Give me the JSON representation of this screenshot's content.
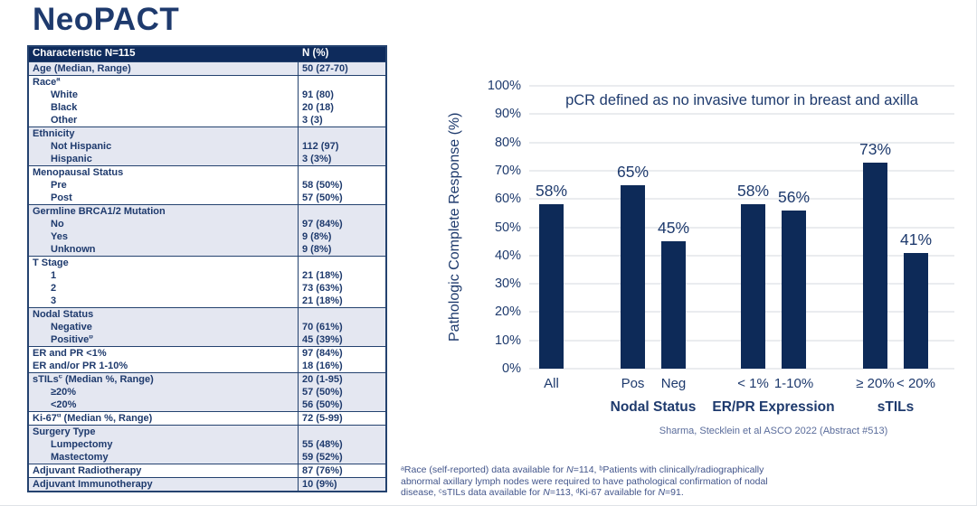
{
  "slide": {
    "title": "NeoPACT"
  },
  "table": {
    "header": [
      "Characteristic N=115",
      "N (%)"
    ],
    "sections": [
      {
        "shade": "light",
        "rows": [
          {
            "label": "Age (Median, Range)",
            "value": "50 (27-70)"
          }
        ]
      },
      {
        "shade": "white",
        "rows": [
          {
            "label": "Race",
            "sup": "a",
            "value": ""
          },
          {
            "label": "White",
            "indent": true,
            "value": "91 (80)"
          },
          {
            "label": "Black",
            "indent": true,
            "value": "20 (18)"
          },
          {
            "label": "Other",
            "indent": true,
            "value": "3 (3)"
          }
        ]
      },
      {
        "shade": "light",
        "rows": [
          {
            "label": "Ethnicity",
            "value": ""
          },
          {
            "label": "Not Hispanic",
            "indent": true,
            "value": "112 (97)"
          },
          {
            "label": "Hispanic",
            "indent": true,
            "value": "3 (3%)"
          }
        ]
      },
      {
        "shade": "white",
        "rows": [
          {
            "label": "Menopausal Status",
            "value": ""
          },
          {
            "label": "Pre",
            "indent": true,
            "value": "58 (50%)"
          },
          {
            "label": "Post",
            "indent": true,
            "value": "57 (50%)"
          }
        ]
      },
      {
        "shade": "light",
        "rows": [
          {
            "label": "Germline BRCA1/2 Mutation",
            "value": ""
          },
          {
            "label": "No",
            "indent": true,
            "value": "97 (84%)"
          },
          {
            "label": "Yes",
            "indent": true,
            "value": "9 (8%)"
          },
          {
            "label": "Unknown",
            "indent": true,
            "value": "9 (8%)"
          }
        ]
      },
      {
        "shade": "white",
        "rows": [
          {
            "label": "T Stage",
            "value": ""
          },
          {
            "label": "1",
            "indent": true,
            "value": "21 (18%)"
          },
          {
            "label": "2",
            "indent": true,
            "value": "73 (63%)"
          },
          {
            "label": "3",
            "indent": true,
            "value": "21 (18%)"
          }
        ]
      },
      {
        "shade": "light",
        "rows": [
          {
            "label": "Nodal Status",
            "value": ""
          },
          {
            "label": "Negative",
            "indent": true,
            "value": "70 (61%)"
          },
          {
            "label": "Positive",
            "sup": "b",
            "indent": true,
            "value": "45 (39%)"
          }
        ]
      },
      {
        "shade": "white",
        "rows": [
          {
            "label": "ER and PR <1%",
            "value": "97 (84%)"
          },
          {
            "label": "ER and/or PR 1-10%",
            "value": "18 (16%)"
          }
        ]
      },
      {
        "shade": "light",
        "rows": [
          {
            "label": "sTILs",
            "sup": "c",
            "suffix": " (Median %, Range)",
            "value": "20 (1-95)"
          },
          {
            "label": "≥20%",
            "indent": true,
            "value": "57 (50%)"
          },
          {
            "label": "<20%",
            "indent": true,
            "value": "56 (50%)"
          }
        ]
      },
      {
        "shade": "white",
        "rows": [
          {
            "label": "Ki-67",
            "sup": "d",
            "suffix": " (Median %, Range)",
            "value": "72 (5-99)"
          }
        ]
      },
      {
        "shade": "light",
        "rows": [
          {
            "label": "Surgery Type",
            "value": ""
          },
          {
            "label": "Lumpectomy",
            "indent": true,
            "value": "55 (48%)"
          },
          {
            "label": "Mastectomy",
            "indent": true,
            "value": "59 (52%)"
          }
        ]
      },
      {
        "shade": "white",
        "rows": [
          {
            "label": "Adjuvant Radiotherapy",
            "value": "87 (76%)"
          }
        ]
      },
      {
        "shade": "light",
        "rows": [
          {
            "label": "Adjuvant Immunotherapy",
            "value": "10 (9%)"
          }
        ]
      }
    ]
  },
  "chart_data": {
    "type": "bar",
    "annotation": "pCR defined as no invasive tumor in breast and axilla",
    "ylabel": "Pathologic Complete Response (%)",
    "ylim": [
      0,
      100
    ],
    "ytick_step": 10,
    "grid": true,
    "legend": "none",
    "categories": [
      "All",
      "Pos",
      "Neg",
      "< 1%",
      "1-10%",
      "≥ 20%",
      "< 20%"
    ],
    "values": [
      58,
      65,
      45,
      58,
      56,
      73,
      41
    ],
    "bar_labels": [
      "58%",
      "65%",
      "45%",
      "58%",
      "56%",
      "73%",
      "41%"
    ],
    "groups": [
      {
        "label": "Nodal Status",
        "bars": [
          1,
          2
        ]
      },
      {
        "label": "ER/PR Expression",
        "bars": [
          3,
          4
        ]
      },
      {
        "label": "sTILs",
        "bars": [
          5,
          6
        ]
      }
    ],
    "bar_color": "#0d2a58",
    "citation": "Sharma, Stecklein et al ASCO 2022 (Abstract #513)"
  },
  "footnote": {
    "lines": [
      "ᵃRace (self-reported) data available for N=114, ᵇPatients with clinically/radiographically",
      "abnormal axillary lymph nodes were required to have pathological confirmation of nodal",
      "disease, ᶜsTILs data available for N=113, ᵈKi-67 available for N=91."
    ]
  }
}
